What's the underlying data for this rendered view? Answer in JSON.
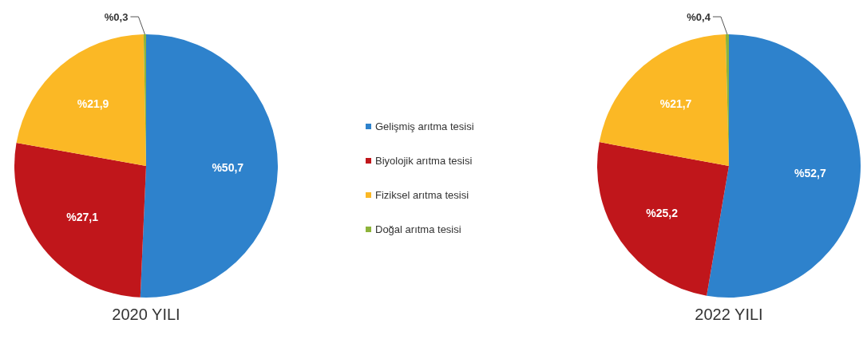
{
  "chart_data": {
    "type": "pie",
    "categories": [
      "Gelişmiş arıtma tesisi",
      "Biyolojik arıtma tesisi",
      "Fiziksel arıtma tesisi",
      "Doğal arıtma tesisi"
    ],
    "colors": [
      "#2e82cc",
      "#c0161b",
      "#fbb825",
      "#8db33a"
    ],
    "legend": "right",
    "series": [
      {
        "name": "2020 YILI",
        "values": [
          50.7,
          27.1,
          21.9,
          0.3
        ],
        "value_labels": [
          "%50,7",
          "%27,1",
          "%21,9",
          "%0,3"
        ]
      },
      {
        "name": "2022 YILI",
        "values": [
          52.7,
          25.2,
          21.7,
          0.4
        ],
        "value_labels": [
          "%52,7",
          "%25,2",
          "%21,7",
          "%0,4"
        ]
      }
    ]
  }
}
